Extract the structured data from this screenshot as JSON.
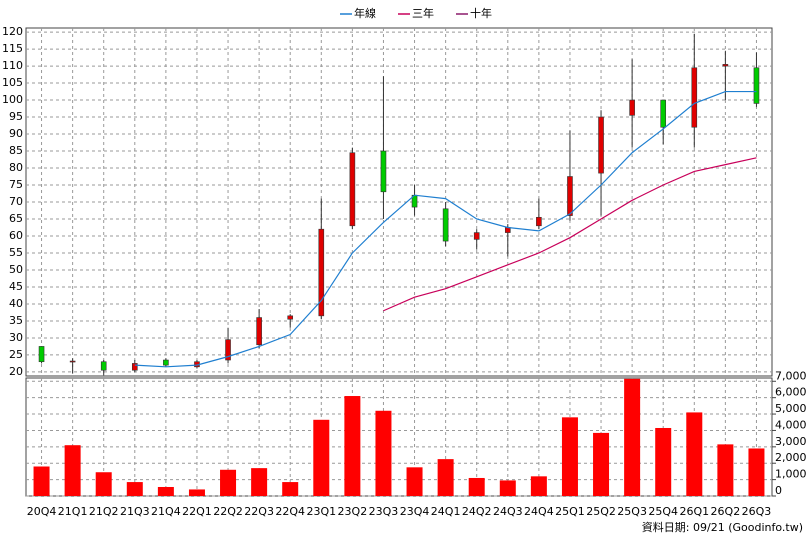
{
  "chart_data": [
    {
      "type": "candlestick",
      "open": [
        27.5,
        23,
        23,
        20.5,
        23.5,
        21.5,
        23.5,
        28,
        35.5,
        36.5,
        63,
        85,
        72,
        68,
        59,
        61,
        63,
        66,
        78.5,
        95.5,
        100,
        92,
        110,
        109.5
      ],
      "high": [
        27.5,
        24,
        23.5,
        23.5,
        24,
        23.5,
        33,
        38.5,
        37,
        71,
        86,
        107,
        75,
        70,
        62,
        63.5,
        71,
        91,
        97,
        112,
        100,
        119.5,
        114.5,
        114
      ],
      "low": [
        22.5,
        19.5,
        19,
        20,
        21.5,
        21,
        22.5,
        27,
        33,
        35.5,
        62,
        65,
        66,
        57,
        56,
        54,
        62,
        64.5,
        66,
        86,
        87,
        86,
        100,
        98
      ],
      "close": [
        23,
        23.2,
        20.5,
        22.5,
        22,
        23,
        29.5,
        36,
        36.5,
        62,
        84.5,
        73,
        68.5,
        58.5,
        61,
        62.5,
        65.5,
        77.5,
        95,
        100,
        92,
        109.5,
        110.5,
        99
      ],
      "up_color": "#e00000",
      "down_color": "#00cc00",
      "series": [
        {
          "name": "年線",
          "color": "#1f7fd0",
          "values": [
            null,
            null,
            null,
            22,
            21.5,
            22,
            24.5,
            27.5,
            31,
            41,
            55,
            64,
            72,
            71,
            65,
            62.5,
            61.5,
            66.5,
            75,
            84.5,
            91.5,
            99,
            102.5,
            102.5
          ]
        },
        {
          "name": "三年",
          "color": "#c8005a",
          "values": [
            null,
            null,
            null,
            null,
            null,
            null,
            null,
            null,
            null,
            null,
            null,
            38,
            42,
            44.5,
            48,
            51.5,
            55,
            59.5,
            65,
            70.5,
            75,
            79,
            81,
            83
          ]
        },
        {
          "name": "十年",
          "color": "#8b1a6b",
          "values": [
            null,
            null,
            null,
            null,
            null,
            null,
            null,
            null,
            null,
            null,
            null,
            null,
            null,
            null,
            null,
            null,
            null,
            null,
            null,
            null,
            null,
            null,
            null,
            null
          ]
        }
      ],
      "ylim": [
        18.8,
        121.2
      ],
      "yticks": [
        20,
        25,
        30,
        35,
        40,
        45,
        50,
        55,
        60,
        65,
        70,
        75,
        80,
        85,
        90,
        95,
        100,
        105,
        110,
        115,
        120
      ],
      "grid": true
    },
    {
      "type": "bar",
      "categories": [
        "20Q4",
        "21Q1",
        "21Q2",
        "21Q3",
        "21Q4",
        "22Q1",
        "22Q2",
        "22Q3",
        "22Q4",
        "23Q1",
        "23Q2",
        "23Q3",
        "23Q4",
        "24Q1",
        "24Q2",
        "24Q3",
        "24Q4",
        "25Q1",
        "25Q2",
        "25Q3",
        "25Q4",
        "26Q1",
        "26Q2",
        "26Q3"
      ],
      "values": [
        1800,
        3100,
        1450,
        850,
        550,
        400,
        1600,
        1700,
        850,
        4650,
        6100,
        5200,
        1750,
        2250,
        1100,
        950,
        1200,
        4800,
        3850,
        7150,
        4150,
        5100,
        3150,
        2900
      ],
      "color": "#ff0000",
      "ylim": [
        0,
        7200
      ],
      "yticks": [
        0,
        {
          "value": 1000,
          "label": "1,000"
        },
        {
          "value": 2000,
          "label": "2,000"
        },
        {
          "value": 3000,
          "label": "3,000"
        },
        {
          "value": 4000,
          "label": "4,000"
        },
        {
          "value": 5000,
          "label": "5,000"
        },
        {
          "value": 6000,
          "label": "6,000"
        },
        {
          "value": 7000,
          "label": "7,000"
        }
      ],
      "grid": true
    }
  ],
  "source": "資料日期: 09/21 (Goodinfo.tw)"
}
